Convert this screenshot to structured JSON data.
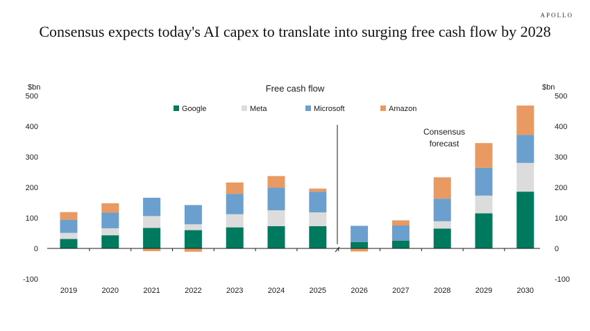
{
  "brand": "APOLLO",
  "headline": "Consensus expects today's AI capex to translate into surging free cash flow by 2028",
  "chart_data": {
    "type": "bar",
    "stacked": true,
    "title": "Free cash flow",
    "ylabel_left": "$bn",
    "ylabel_right": "$bn",
    "ylim": [
      -100,
      500
    ],
    "yticks": [
      -100,
      0,
      100,
      200,
      300,
      400,
      500
    ],
    "legend_position": "top-center",
    "annotation": "Consensus\nforecast",
    "categories": [
      "2019",
      "2020",
      "2021",
      "2022",
      "2023",
      "2024",
      "2025",
      "2026",
      "2027",
      "2028",
      "2029",
      "2030"
    ],
    "series": [
      {
        "name": "Google",
        "color": "#007a5e",
        "values": [
          31,
          43,
          67,
          60,
          69,
          73,
          73,
          21,
          25,
          65,
          115,
          186
        ]
      },
      {
        "name": "Meta",
        "color": "#dcdcdc",
        "values": [
          20,
          23,
          39,
          19,
          43,
          52,
          45,
          0,
          0,
          24,
          58,
          94
        ]
      },
      {
        "name": "Microsoft",
        "color": "#6b9fce",
        "values": [
          43,
          51,
          60,
          63,
          67,
          74,
          68,
          53,
          50,
          74,
          91,
          92
        ]
      },
      {
        "name": "Amazon",
        "color": "#e89a62",
        "values": [
          25,
          31,
          -9,
          -11,
          37,
          38,
          10,
          -10,
          17,
          70,
          81,
          96
        ]
      }
    ]
  }
}
